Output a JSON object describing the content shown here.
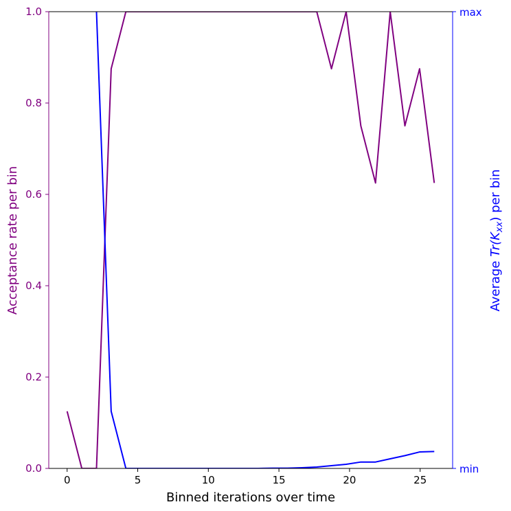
{
  "chart_data": {
    "type": "line",
    "xlabel": "Binned iterations over time",
    "ylabel_left": "Acceptance rate per bin",
    "ylabel_right_prefix": "Average ",
    "ylabel_right_math": "Tr(K",
    "ylabel_right_sub": "xx",
    "ylabel_right_suffix": ") per bin",
    "xlim": [
      -1.3,
      27.3
    ],
    "ylim_left": [
      0,
      1
    ],
    "x_ticks": [
      0,
      5,
      10,
      15,
      20,
      25
    ],
    "y_ticks_left": [
      0.0,
      0.2,
      0.4,
      0.6,
      0.8,
      1.0
    ],
    "y_tick_labels_left": [
      "0.0",
      "0.2",
      "0.4",
      "0.6",
      "0.8",
      "1.0"
    ],
    "y_tick_labels_right": {
      "min": "min",
      "max": "max"
    },
    "colors": {
      "left": "#800080",
      "right": "#0000ff",
      "spine": "#000000"
    },
    "series": [
      {
        "name": "Acceptance rate",
        "axis": "left",
        "color": "#800080",
        "x": [
          0,
          1.04,
          2.08,
          3.12,
          4.16,
          5.2,
          6.24,
          7.28,
          8.32,
          9.36,
          10.4,
          11.44,
          12.48,
          13.52,
          14.56,
          15.6,
          16.64,
          17.68,
          18.72,
          19.76,
          20.8,
          21.84,
          22.88,
          23.92,
          24.96,
          26.0
        ],
        "values": [
          0.125,
          0.0,
          0.0,
          0.875,
          1.0,
          1.0,
          1.0,
          1.0,
          1.0,
          1.0,
          1.0,
          1.0,
          1.0,
          1.0,
          1.0,
          1.0,
          1.0,
          1.0,
          0.875,
          1.0,
          0.75,
          0.625,
          1.0,
          0.75,
          0.875,
          0.625
        ]
      },
      {
        "name": "Average Tr(Kxx)",
        "axis": "right",
        "color": "#0000ff",
        "x": [
          2.08,
          3.12,
          4.16,
          5.2,
          6.24,
          7.28,
          8.32,
          9.36,
          10.4,
          11.44,
          12.48,
          13.52,
          14.56,
          15.6,
          16.64,
          17.68,
          18.72,
          19.76,
          20.8,
          21.84,
          22.88,
          23.92,
          24.96,
          26.0
        ],
        "values": [
          1.0,
          0.125,
          0.0,
          0.0,
          0.0,
          0.0,
          0.0,
          0.0,
          0.0,
          0.0,
          0.0,
          0.0,
          0.0006,
          0.0006,
          0.0015,
          0.003,
          0.006,
          0.009,
          0.014,
          0.014,
          0.021,
          0.028,
          0.036,
          0.037
        ]
      }
    ]
  }
}
